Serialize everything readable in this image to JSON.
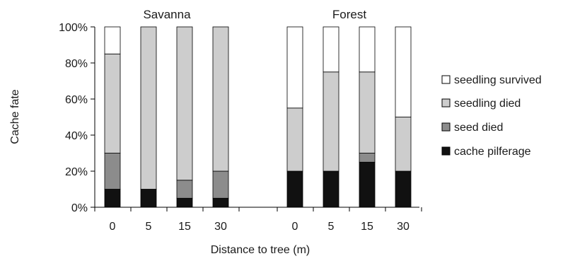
{
  "chart_data": {
    "type": "bar",
    "stacked": true,
    "ylabel": "Cache fate",
    "xlabel": "Distance to tree (m)",
    "ylim": [
      0,
      100
    ],
    "yticks": [
      "0%",
      "20%",
      "40%",
      "60%",
      "80%",
      "100%"
    ],
    "legend_position": "right",
    "groups": [
      {
        "title": "Savanna",
        "categories": [
          "0",
          "5",
          "15",
          "30"
        ]
      },
      {
        "title": "Forest",
        "categories": [
          "0",
          "5",
          "15",
          "30"
        ]
      }
    ],
    "series": [
      {
        "name": "cache pilferage",
        "color": "#111111",
        "savanna": [
          10,
          10,
          5,
          5
        ],
        "forest": [
          20,
          20,
          25,
          20
        ]
      },
      {
        "name": "seed died",
        "color": "#8c8c8c",
        "savanna": [
          20,
          0,
          10,
          15
        ],
        "forest": [
          0,
          0,
          5,
          0
        ]
      },
      {
        "name": "seedling died",
        "color": "#cdcdcd",
        "savanna": [
          55,
          90,
          85,
          80
        ],
        "forest": [
          35,
          55,
          45,
          30
        ]
      },
      {
        "name": "seedling survived",
        "color": "#ffffff",
        "savanna": [
          15,
          0,
          0,
          0
        ],
        "forest": [
          45,
          25,
          25,
          50
        ]
      }
    ]
  }
}
